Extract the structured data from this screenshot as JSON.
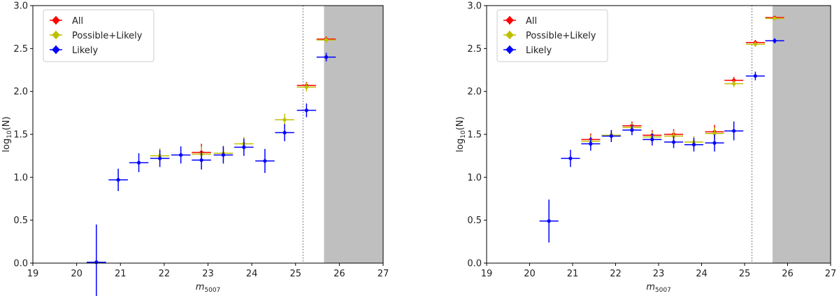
{
  "chart_data": [
    {
      "type": "scatter",
      "panel": "left",
      "xlabel": "m",
      "xlabel_sub": "5007",
      "ylabel": "log",
      "ylabel_sub": "10",
      "ylabel_suffix": "(N)",
      "xlim": [
        19,
        27
      ],
      "ylim": [
        0,
        3
      ],
      "xticks": [
        19,
        20,
        21,
        22,
        23,
        24,
        25,
        26,
        27
      ],
      "yticks": [
        0.0,
        0.5,
        1.0,
        1.5,
        2.0,
        2.5,
        3.0
      ],
      "xtick_labels": [
        "19",
        "20",
        "21",
        "22",
        "23",
        "24",
        "25",
        "26",
        "27"
      ],
      "ytick_labels": [
        "0.0",
        "0.5",
        "1.0",
        "1.5",
        "2.0",
        "2.5",
        "3.0"
      ],
      "legend_position": "top-left",
      "grid": false,
      "vline": 25.17,
      "shaded_region": [
        25.65,
        27
      ],
      "half_bin_width": 0.22,
      "series": [
        {
          "name": "All",
          "color": "#ff0000",
          "x": [
            22.85,
            25.25,
            25.7
          ],
          "y": [
            1.29,
            2.07,
            2.61
          ],
          "yerr": [
            0.1,
            0.04,
            0.03
          ]
        },
        {
          "name": "Possible+Likely",
          "color": "#bfbf00",
          "x": [
            21.9,
            22.85,
            23.35,
            23.82,
            24.75,
            25.25,
            25.7
          ],
          "y": [
            1.25,
            1.27,
            1.28,
            1.39,
            1.67,
            2.05,
            2.6
          ],
          "yerr": [
            0.09,
            0.09,
            0.09,
            0.08,
            0.07,
            0.05,
            0.03
          ]
        },
        {
          "name": "Likely",
          "color": "#0000ff",
          "x": [
            20.45,
            20.95,
            21.42,
            21.9,
            22.38,
            22.85,
            23.35,
            23.82,
            24.3,
            24.75,
            25.25,
            25.7
          ],
          "y": [
            0.01,
            0.97,
            1.17,
            1.22,
            1.26,
            1.2,
            1.26,
            1.35,
            1.19,
            1.52,
            1.78,
            2.4
          ],
          "yerr": [
            0.44,
            0.13,
            0.11,
            0.1,
            0.1,
            0.11,
            0.1,
            0.1,
            0.14,
            0.1,
            0.08,
            0.05
          ]
        }
      ]
    },
    {
      "type": "scatter",
      "panel": "right",
      "xlabel": "m",
      "xlabel_sub": "5007",
      "ylabel": "log",
      "ylabel_sub": "10",
      "ylabel_suffix": "(N)",
      "xlim": [
        19,
        27
      ],
      "ylim": [
        0,
        3
      ],
      "xticks": [
        19,
        20,
        21,
        22,
        23,
        24,
        25,
        26,
        27
      ],
      "yticks": [
        0.0,
        0.5,
        1.0,
        1.5,
        2.0,
        2.5,
        3.0
      ],
      "xtick_labels": [
        "19",
        "20",
        "21",
        "22",
        "23",
        "24",
        "25",
        "26",
        "27"
      ],
      "ytick_labels": [
        "0.0",
        "0.5",
        "1.0",
        "1.5",
        "2.0",
        "2.5",
        "3.0"
      ],
      "legend_position": "top-left",
      "grid": false,
      "vline": 25.17,
      "shaded_region": [
        25.65,
        27
      ],
      "half_bin_width": 0.22,
      "series": [
        {
          "name": "All",
          "color": "#ff0000",
          "x": [
            21.42,
            21.9,
            22.38,
            22.85,
            23.35,
            24.3,
            24.75,
            25.25,
            25.7
          ],
          "y": [
            1.44,
            1.49,
            1.6,
            1.49,
            1.5,
            1.53,
            2.13,
            2.57,
            2.86
          ],
          "yerr": [
            0.07,
            0.06,
            0.05,
            0.06,
            0.06,
            0.08,
            0.04,
            0.03,
            0.02
          ]
        },
        {
          "name": "Possible+Likely",
          "color": "#bfbf00",
          "x": [
            21.42,
            21.9,
            22.38,
            22.85,
            23.35,
            23.82,
            24.3,
            24.75,
            25.25,
            25.7
          ],
          "y": [
            1.42,
            1.49,
            1.58,
            1.47,
            1.48,
            1.41,
            1.51,
            2.09,
            2.55,
            2.85
          ],
          "yerr": [
            0.07,
            0.06,
            0.05,
            0.06,
            0.06,
            0.07,
            0.07,
            0.04,
            0.03,
            0.02
          ]
        },
        {
          "name": "Likely",
          "color": "#0000ff",
          "x": [
            20.45,
            20.95,
            21.42,
            21.9,
            22.38,
            22.85,
            23.35,
            23.82,
            24.3,
            24.75,
            25.25,
            25.7
          ],
          "y": [
            0.49,
            1.22,
            1.39,
            1.48,
            1.55,
            1.44,
            1.41,
            1.38,
            1.4,
            1.54,
            2.18,
            2.59
          ],
          "yerr": [
            0.25,
            0.1,
            0.08,
            0.07,
            0.06,
            0.07,
            0.07,
            0.08,
            0.1,
            0.11,
            0.05,
            0.03
          ]
        }
      ]
    }
  ]
}
